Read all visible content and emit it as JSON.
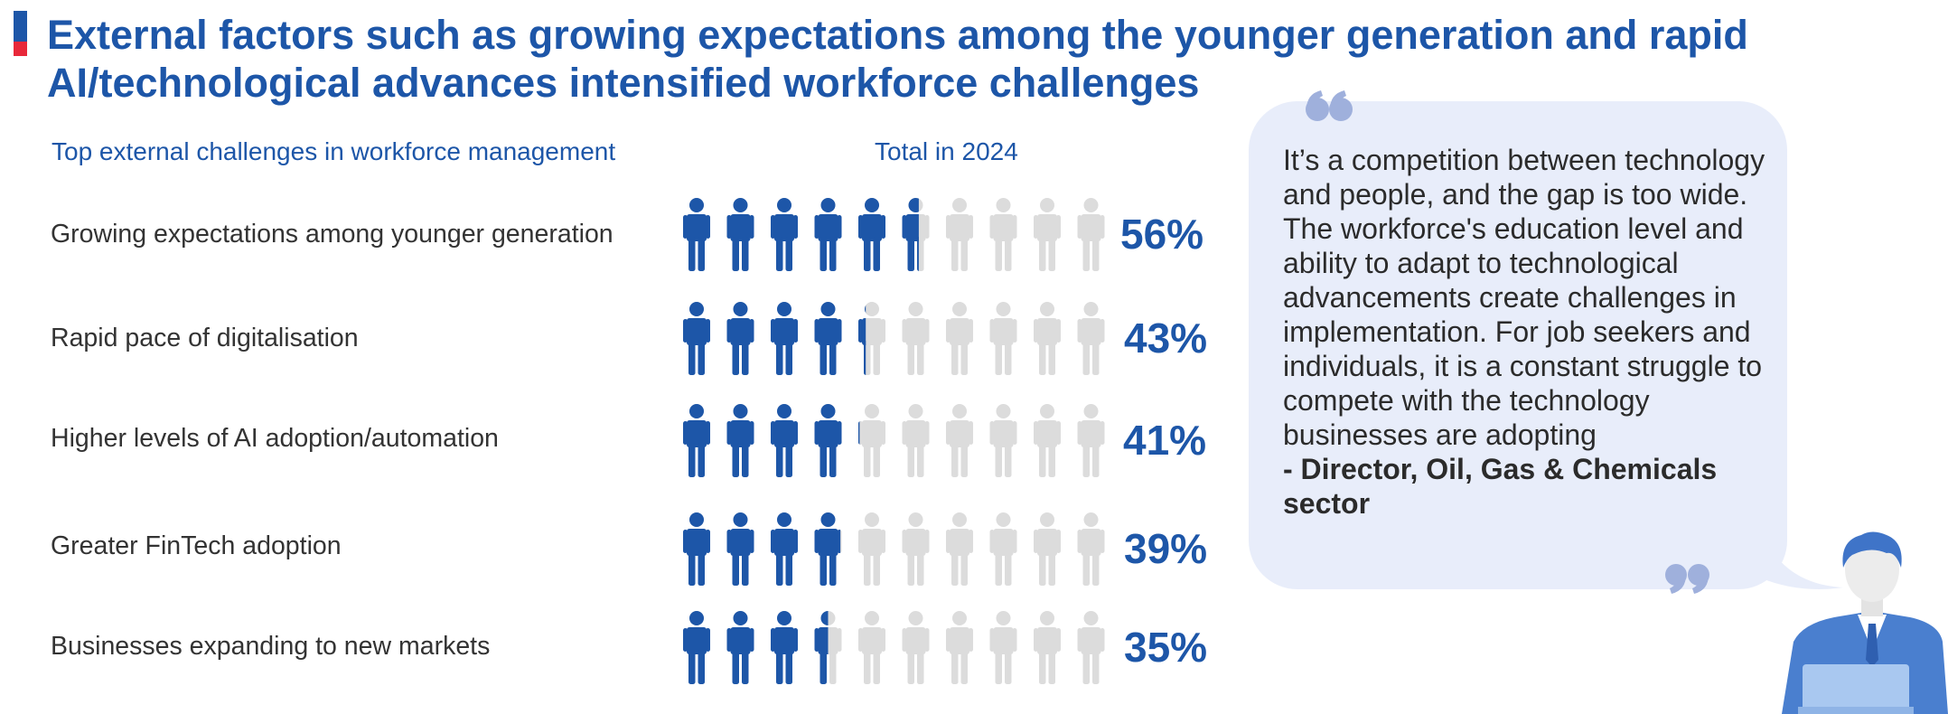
{
  "title": "External factors such as growing expectations among the younger generation and rapid AI/technological advances intensified workforce challenges",
  "colors": {
    "accent": "#1d56a8",
    "accent_red": "#e8283a",
    "icon_empty": "#dcdcdc",
    "bubble": "#e8edfa"
  },
  "chart_data": {
    "type": "bar",
    "title": "Top external challenges in workforce management",
    "series_label": "Total in 2024",
    "icons_per_row": 10,
    "unit": "%",
    "categories": [
      "Growing expectations among younger generation",
      "Rapid pace of digitalisation",
      "Higher levels of AI adoption/automation",
      "Greater FinTech adoption",
      "Businesses expanding to new markets"
    ],
    "values": [
      56,
      43,
      41,
      39,
      35
    ],
    "value_labels": [
      "56%",
      "43%",
      "41%",
      "39%",
      "35%"
    ]
  },
  "quote": {
    "open_icon": "open-quote-icon",
    "close_icon": "close-quote-icon",
    "text": "It’s a competition between technology and people, and the gap is too wide. The workforce's education level and ability to adapt to technological advancements create challenges in implementation. For job seekers and individuals, it is a constant struggle to compete with the technology businesses are adopting",
    "attribution": "- Director, Oil, Gas & Chemicals sector"
  },
  "illustration": {
    "icon": "businessman-laptop-icon"
  }
}
